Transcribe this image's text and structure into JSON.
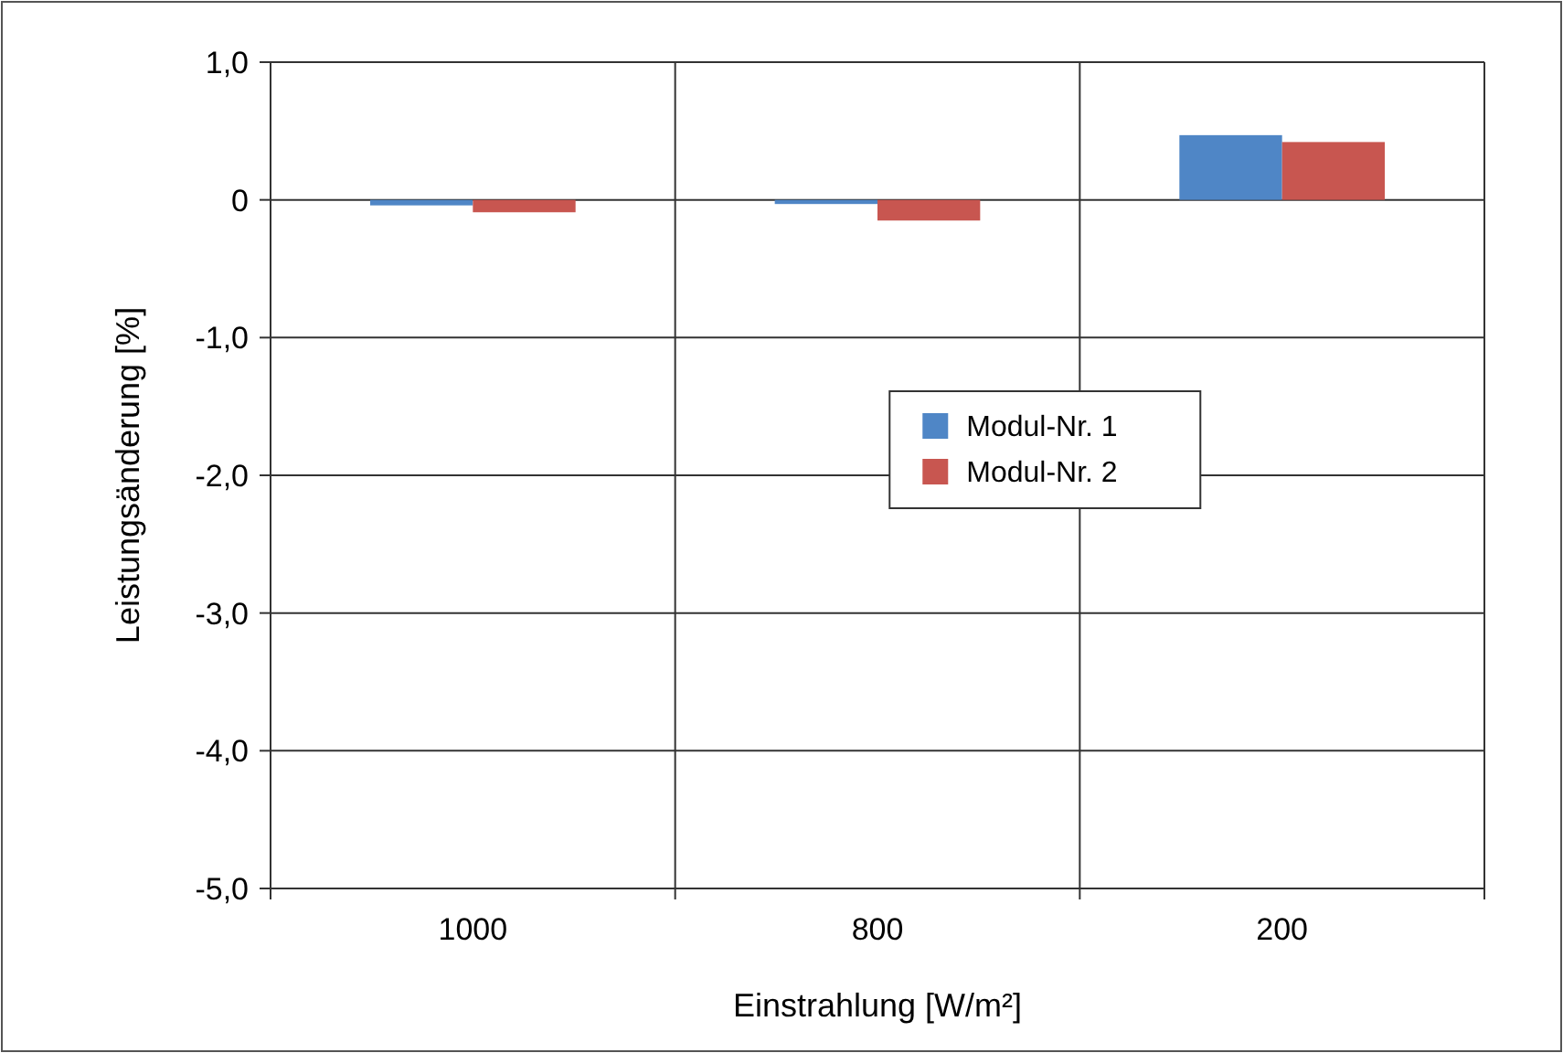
{
  "chart_data": {
    "type": "bar",
    "xlabel": "Einstrahlung [W/m²]",
    "ylabel": "Leistungsänderung [%]",
    "categories": [
      "1000",
      "800",
      "200"
    ],
    "series": [
      {
        "name": "Modul-Nr. 1",
        "color": "#4f86c6",
        "values": [
          -0.04,
          -0.03,
          0.47
        ]
      },
      {
        "name": "Modul-Nr. 2",
        "color": "#c85650",
        "values": [
          -0.09,
          -0.15,
          0.42
        ]
      }
    ],
    "ylim": [
      -5,
      1
    ],
    "yticks": [
      {
        "value": 1,
        "label": "1,0"
      },
      {
        "value": 0,
        "label": "0"
      },
      {
        "value": -1,
        "label": "-1,0"
      },
      {
        "value": -2,
        "label": "-2,0"
      },
      {
        "value": -3,
        "label": "-3,0"
      },
      {
        "value": -4,
        "label": "-4,0"
      },
      {
        "value": -5,
        "label": "-5,0"
      }
    ],
    "grid": true,
    "legend": "center"
  }
}
